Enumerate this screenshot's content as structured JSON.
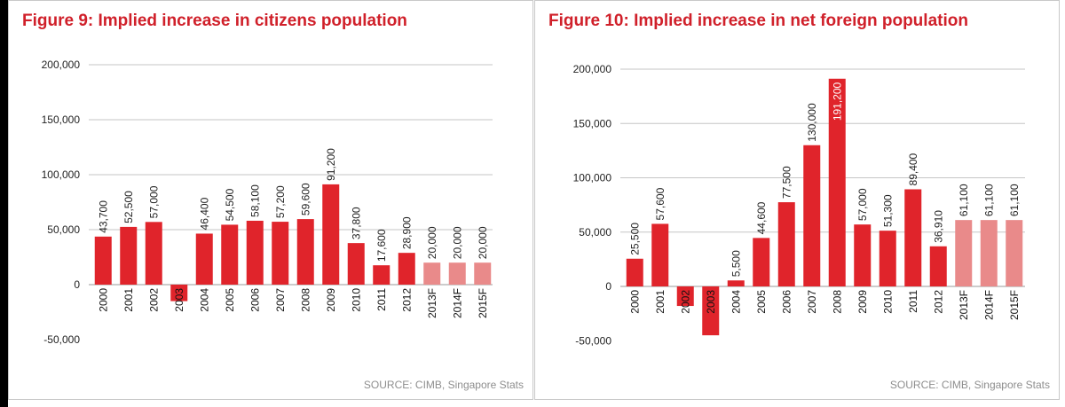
{
  "figures": [
    {
      "title": "Figure 9: Implied increase in citizens population",
      "source": "SOURCE: CIMB, Singapore Stats"
    },
    {
      "title": "Figure 10: Implied increase in net foreign population",
      "source": "SOURCE: CIMB, Singapore Stats"
    }
  ],
  "colors": {
    "actual": "#e0242b",
    "forecast": "#e98a8a",
    "title": "#d0202a",
    "grid": "#c6c6c6",
    "source": "#8e8e8e"
  },
  "chart_data": [
    {
      "type": "bar",
      "categories": [
        "2000",
        "2001",
        "2002",
        "2003",
        "2004",
        "2005",
        "2006",
        "2007",
        "2008",
        "2009",
        "2010",
        "2011",
        "2012",
        "2013F",
        "2014F",
        "2015F"
      ],
      "values": [
        43700,
        52500,
        57000,
        -15000,
        46400,
        54500,
        58100,
        57200,
        59600,
        91200,
        37800,
        17600,
        28900,
        20000,
        20000,
        20000
      ],
      "data_labels": [
        "43,700",
        "52,500",
        "57,000",
        "",
        "46,400",
        "54,500",
        "58,100",
        "57,200",
        "59,600",
        "91,200",
        "37,800",
        "17,600",
        "28,900",
        "20,000",
        "20,000",
        "20,000"
      ],
      "forecast": [
        false,
        false,
        false,
        false,
        false,
        false,
        false,
        false,
        false,
        false,
        false,
        false,
        false,
        true,
        true,
        true
      ],
      "ylim": [
        -50000,
        200000
      ],
      "yticks": [
        200000,
        150000,
        100000,
        50000,
        0,
        -50000
      ],
      "ytick_labels": [
        "200,000",
        "150,000",
        "100,000",
        "50,000",
        "0",
        "-50,000"
      ],
      "grid": true,
      "xlabel": "",
      "ylabel": ""
    },
    {
      "type": "bar",
      "categories": [
        "2000",
        "2001",
        "2002",
        "2003",
        "2004",
        "2005",
        "2006",
        "2007",
        "2008",
        "2009",
        "2010",
        "2011",
        "2012",
        "2013F",
        "2014F",
        "2015F"
      ],
      "values": [
        25500,
        57600,
        -18000,
        -45000,
        5500,
        44600,
        77500,
        130000,
        191200,
        57000,
        51300,
        89400,
        36910,
        61100,
        61100,
        61100
      ],
      "data_labels": [
        "25,500",
        "57,600",
        "",
        "",
        "5,500",
        "44,600",
        "77,500",
        "130,000",
        "191,200",
        "57,000",
        "51,300",
        "89,400",
        "36,910",
        "61,100",
        "61,100",
        "61,100"
      ],
      "forecast": [
        false,
        false,
        false,
        false,
        false,
        false,
        false,
        false,
        false,
        false,
        false,
        false,
        false,
        true,
        true,
        true
      ],
      "ylim": [
        -50000,
        200000
      ],
      "yticks": [
        200000,
        150000,
        100000,
        50000,
        0,
        -50000
      ],
      "ytick_labels": [
        "200,000",
        "150,000",
        "100,000",
        "50,000",
        "0",
        "-50,000"
      ],
      "grid": true,
      "xlabel": "",
      "ylabel": ""
    }
  ]
}
